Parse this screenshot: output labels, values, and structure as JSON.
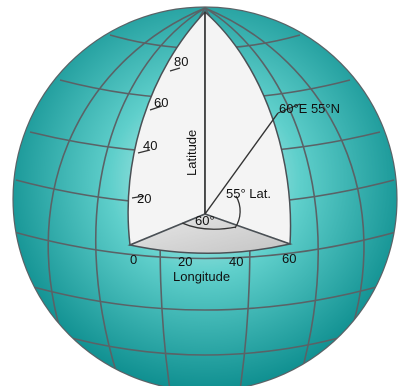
{
  "diagram": {
    "latitude_ticks": [
      "20",
      "40",
      "60",
      "80"
    ],
    "longitude_ticks": [
      "0",
      "20",
      "40",
      "60"
    ],
    "latitude_label": "Latitude",
    "longitude_label": "Longitude",
    "point_label": "60°E 55°N",
    "lat_angle_label": "55° Lat.",
    "lon_angle_label": "60°"
  },
  "colors": {
    "sphere_center": "#dff7f5",
    "sphere_mid": "#5fcfcb",
    "sphere_edge": "#0f8f90",
    "grid": "#5a6266",
    "cutaway_face": "#f4f4f4",
    "cutaway_floor": "#cfcfcf",
    "ray": "#333333"
  }
}
